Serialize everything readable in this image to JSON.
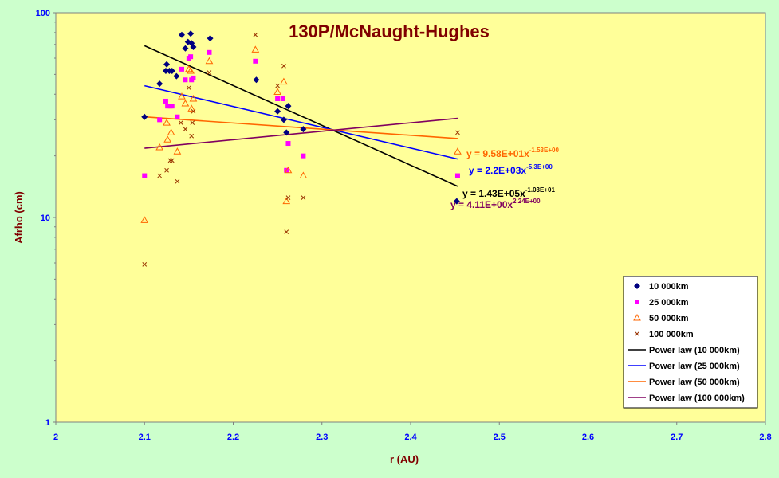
{
  "chart_data": {
    "type": "scatter",
    "title": "130P/McNaught-Hughes",
    "xlabel": "r (AU)",
    "ylabel": "Afrho (cm)",
    "xlim": [
      2,
      2.8
    ],
    "ylim": [
      1,
      100
    ],
    "yscale": "log",
    "grid": false,
    "legend_position": "bottom-right",
    "xticks": [
      "2",
      "2.1",
      "2.2",
      "2.3",
      "2.4",
      "2.5",
      "2.6",
      "2.7",
      "2.8"
    ],
    "yticks": [
      "1",
      "10",
      "100"
    ],
    "colors": {
      "plot_bg": "#ffff99",
      "page_bg": "#ccffcc",
      "s10": "#000080",
      "s25": "#ff00ff",
      "s50": "#ff6600",
      "s100": "#993300",
      "fit10": "#000000",
      "fit25": "#0000ff",
      "fit50": "#ff6600",
      "fit100": "#800060"
    },
    "series": [
      {
        "name": "10 000km",
        "marker": "diamond",
        "points": [
          [
            2.1,
            31
          ],
          [
            2.117,
            45
          ],
          [
            2.124,
            52
          ],
          [
            2.125,
            56
          ],
          [
            2.128,
            52
          ],
          [
            2.131,
            52
          ],
          [
            2.136,
            49
          ],
          [
            2.142,
            78
          ],
          [
            2.146,
            67
          ],
          [
            2.149,
            72
          ],
          [
            2.152,
            79
          ],
          [
            2.153,
            71
          ],
          [
            2.155,
            68
          ],
          [
            2.174,
            75
          ],
          [
            2.226,
            47
          ],
          [
            2.25,
            33
          ],
          [
            2.257,
            30
          ],
          [
            2.26,
            26
          ],
          [
            2.262,
            35
          ],
          [
            2.279,
            27
          ],
          [
            2.452,
            12
          ]
        ]
      },
      {
        "name": "25 000km",
        "marker": "square",
        "points": [
          [
            2.1,
            16
          ],
          [
            2.117,
            30
          ],
          [
            2.124,
            37
          ],
          [
            2.126,
            35
          ],
          [
            2.129,
            35
          ],
          [
            2.131,
            35
          ],
          [
            2.137,
            31
          ],
          [
            2.142,
            53
          ],
          [
            2.146,
            47
          ],
          [
            2.15,
            60
          ],
          [
            2.152,
            61
          ],
          [
            2.153,
            47
          ],
          [
            2.155,
            48
          ],
          [
            2.173,
            64
          ],
          [
            2.225,
            58
          ],
          [
            2.25,
            38
          ],
          [
            2.256,
            38
          ],
          [
            2.26,
            17
          ],
          [
            2.262,
            23
          ],
          [
            2.279,
            20
          ],
          [
            2.453,
            16
          ]
        ]
      },
      {
        "name": "50 000km",
        "marker": "triangle",
        "points": [
          [
            2.1,
            9.7
          ],
          [
            2.117,
            22
          ],
          [
            2.125,
            29
          ],
          [
            2.126,
            24
          ],
          [
            2.13,
            26
          ],
          [
            2.137,
            21
          ],
          [
            2.142,
            39
          ],
          [
            2.146,
            36
          ],
          [
            2.15,
            53
          ],
          [
            2.152,
            52
          ],
          [
            2.153,
            34
          ],
          [
            2.155,
            38
          ],
          [
            2.173,
            58
          ],
          [
            2.225,
            66
          ],
          [
            2.25,
            41
          ],
          [
            2.257,
            46
          ],
          [
            2.26,
            12
          ],
          [
            2.262,
            17
          ],
          [
            2.279,
            16
          ],
          [
            2.453,
            21
          ]
        ]
      },
      {
        "name": "100 000km",
        "marker": "x",
        "points": [
          [
            2.1,
            5.9
          ],
          [
            2.117,
            16
          ],
          [
            2.125,
            17
          ],
          [
            2.129,
            19
          ],
          [
            2.131,
            19
          ],
          [
            2.137,
            15
          ],
          [
            2.141,
            29
          ],
          [
            2.146,
            27
          ],
          [
            2.15,
            43
          ],
          [
            2.153,
            25
          ],
          [
            2.154,
            29
          ],
          [
            2.155,
            33
          ],
          [
            2.173,
            51
          ],
          [
            2.225,
            78
          ],
          [
            2.25,
            44
          ],
          [
            2.257,
            55
          ],
          [
            2.26,
            8.5
          ],
          [
            2.262,
            12.5
          ],
          [
            2.279,
            12.5
          ],
          [
            2.453,
            26
          ]
        ]
      }
    ],
    "fits": [
      {
        "name": "Power law (10 000km)",
        "x_range": [
          2.1,
          2.453
        ],
        "y_range": [
          69,
          14.2
        ]
      },
      {
        "name": "Power law (25 000km)",
        "x_range": [
          2.1,
          2.453
        ],
        "y_range": [
          44,
          19.3
        ]
      },
      {
        "name": "Power law (50 000km)",
        "x_range": [
          2.1,
          2.453
        ],
        "y_range": [
          31,
          24.3
        ]
      },
      {
        "name": "Power law (100 000km)",
        "x_range": [
          2.1,
          2.453
        ],
        "y_range": [
          21.8,
          30.5
        ]
      }
    ],
    "equations": [
      {
        "base": "y = 9.58E+01x",
        "exp": "-1.53E+00",
        "color": "#ff6600"
      },
      {
        "base": "y = 2.2E+03x",
        "exp": "-5.3E+00",
        "color": "#0000ff"
      },
      {
        "base": "y = 1.43E+05x",
        "exp": "-1.03E+01",
        "color": "#000000"
      },
      {
        "base": "y = 4.11E+00x",
        "exp": "2.24E+00",
        "color": "#800060"
      }
    ]
  }
}
